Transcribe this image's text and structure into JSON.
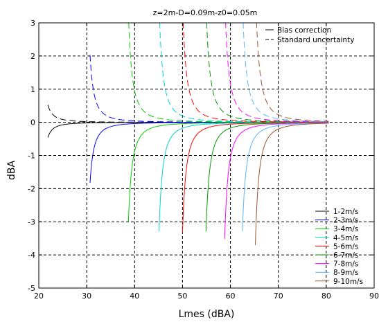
{
  "chart_data": {
    "type": "line",
    "title": "z=2m-D=0.09m-z0=0.05m",
    "xlabel": "Lmes (dBA)",
    "ylabel": "dBA",
    "xlim": [
      20,
      90
    ],
    "ylim": [
      -5,
      3
    ],
    "xticks": [
      20,
      30,
      40,
      50,
      60,
      70,
      80,
      90
    ],
    "yticks": [
      -5,
      -4,
      -3,
      -2,
      -1,
      0,
      1,
      2,
      3
    ],
    "grid": true,
    "style_legend": {
      "placement": "top-right",
      "entries": [
        {
          "label": "Bias correction",
          "dash": "solid"
        },
        {
          "label": "Standard uncertainty",
          "dash": "dashed"
        }
      ]
    },
    "series_legend": {
      "placement": "bottom-right"
    },
    "series": [
      {
        "name": "1-2m/s",
        "color": "#000000",
        "L0": 19.8,
        "k": 2.0,
        "uk": 2.3,
        "x_start": 21.9
      },
      {
        "name": "2-3m/s",
        "color": "#0000ff",
        "L0": 29.13,
        "k": 4.5,
        "uk": 5.0,
        "x_start": 30.7
      },
      {
        "name": "3-4m/s",
        "color": "#00cc00",
        "L0": 37.19,
        "k": 6.9,
        "uk": 7.5,
        "x_start": 38.7
      },
      {
        "name": "4-5m/s",
        "color": "#00d2d2",
        "L0": 43.62,
        "k": 7.2,
        "uk": 7.8,
        "x_start": 45.1
      },
      {
        "name": "5-6m/s",
        "color": "#ff0000",
        "L0": 48.51,
        "k": 7.4,
        "uk": 8.0,
        "x_start": 50.0
      },
      {
        "name": "6-7m/s",
        "color": "#009900",
        "L0": 53.38,
        "k": 7.6,
        "uk": 8.3,
        "x_start": 54.9
      },
      {
        "name": "7-8m/s",
        "color": "#ff00ff",
        "L0": 57.32,
        "k": 7.7,
        "uk": 8.4,
        "x_start": 58.8
      },
      {
        "name": "8-9m/s",
        "color": "#5ab4ff",
        "L0": 60.96,
        "k": 7.8,
        "uk": 8.6,
        "x_start": 62.5
      },
      {
        "name": "9-10m/s",
        "color": "#a0522d",
        "L0": 63.73,
        "k": 8.0,
        "uk": 9.0,
        "x_start": 65.2
      }
    ],
    "x_end": 80.5
  }
}
